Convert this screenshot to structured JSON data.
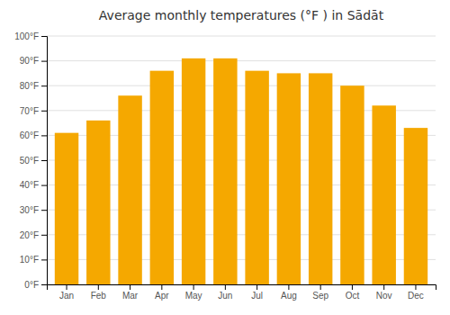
{
  "chart_data": {
    "type": "bar",
    "title": "Average monthly temperatures (°F ) in Sādāt",
    "categories": [
      "Jan",
      "Feb",
      "Mar",
      "Apr",
      "May",
      "Jun",
      "Jul",
      "Aug",
      "Sep",
      "Oct",
      "Nov",
      "Dec"
    ],
    "values": [
      61,
      66,
      76,
      86,
      91,
      91,
      86,
      85,
      85,
      80,
      72,
      63
    ],
    "color": "#F5A800",
    "ylim": [
      0,
      100
    ],
    "yticks": [
      {
        "value": 0,
        "label": "0°F"
      },
      {
        "value": 10,
        "label": "10°F"
      },
      {
        "value": 20,
        "label": "20°F"
      },
      {
        "value": 30,
        "label": "30°F"
      },
      {
        "value": 40,
        "label": "40°F"
      },
      {
        "value": 50,
        "label": "50°F"
      },
      {
        "value": 60,
        "label": "60°F"
      },
      {
        "value": 70,
        "label": "70°F"
      },
      {
        "value": 80,
        "label": "80°F"
      },
      {
        "value": 90,
        "label": "90°F"
      },
      {
        "value": 100,
        "label": "100°F"
      }
    ],
    "grid": true
  }
}
